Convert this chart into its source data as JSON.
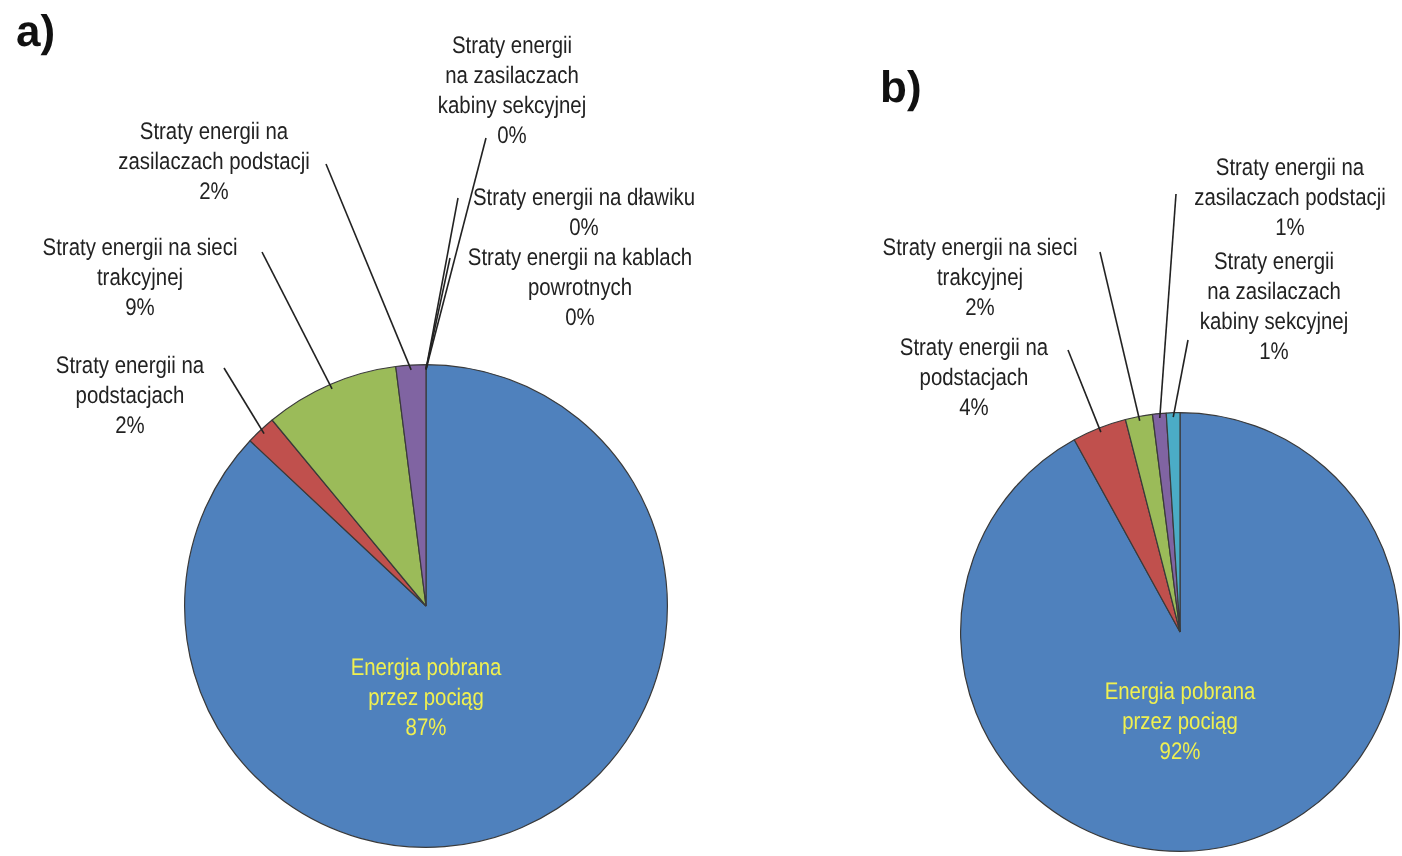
{
  "chart_data": [
    {
      "type": "pie",
      "title": "a)",
      "legend": false,
      "categories": [
        "Energia pobrana\nprzez pociąg",
        "Straty energii na\npodstacjach",
        "Straty energii na sieci\ntrakcyjnej",
        "Straty energii na\nzasilaczach podstacji",
        "Straty energii\nna zasilaczach\nkabiny sekcyjnej",
        "Straty energii na dławiku",
        "Straty energii na kablach\npowrotnych"
      ],
      "values": [
        87,
        2,
        9,
        2,
        0,
        0,
        0
      ],
      "value_labels": [
        "87%",
        "2%",
        "9%",
        "2%",
        "0%",
        "0%",
        "0%"
      ],
      "colors": [
        "#4f81bd",
        "#c0504d",
        "#9bbb59",
        "#8064a2",
        "#4bacc6",
        "#f79646",
        "#2c4d75"
      ]
    },
    {
      "type": "pie",
      "title": "b)",
      "legend": false,
      "categories": [
        "Energia pobrana\nprzez pociąg",
        "Straty energii na\npodstacjach",
        "Straty energii na sieci\ntrakcyjnej",
        "Straty energii na\nzasilaczach podstacji",
        "Straty energii\nna zasilaczach\nkabiny sekcyjnej"
      ],
      "values": [
        92,
        4,
        2,
        1,
        1
      ],
      "value_labels": [
        "92%",
        "4%",
        "2%",
        "1%",
        "1%"
      ],
      "colors": [
        "#4f81bd",
        "#c0504d",
        "#9bbb59",
        "#8064a2",
        "#4bacc6"
      ]
    }
  ]
}
